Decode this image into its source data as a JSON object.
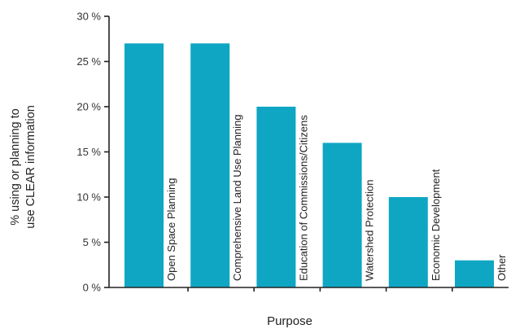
{
  "chart_data": {
    "type": "bar",
    "categories": [
      "Open Space Planning",
      "Comprehensive Land Use Planning",
      "Education of Commissions/Citizens",
      "Watershed Protection",
      "Economic Development",
      "Other"
    ],
    "values": [
      27,
      27,
      20,
      16,
      10,
      3
    ],
    "ylim": [
      0,
      30
    ],
    "yticks": [
      0,
      5,
      10,
      15,
      20,
      25,
      30
    ],
    "ytick_labels": [
      "0 %",
      "5 %",
      "10 %",
      "15 %",
      "20 %",
      "25 %",
      "30 %"
    ],
    "ylabel_line1": "% using or planning to",
    "ylabel_line2": "use CLEAR information",
    "xlabel": "Purpose",
    "bar_color": "#0fa6c4",
    "grid": false
  }
}
